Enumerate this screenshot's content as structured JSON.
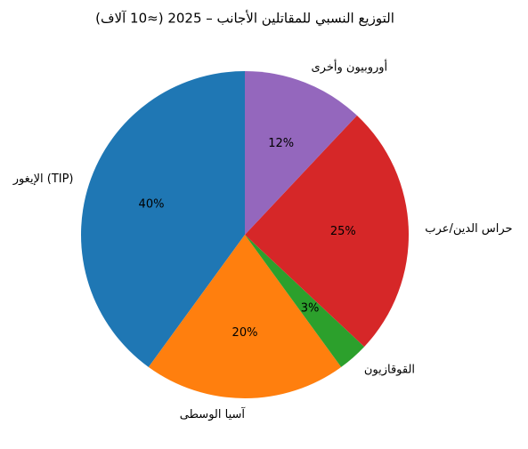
{
  "chart_data": {
    "type": "pie",
    "title": "التوزيع النسبي للمقاتلين الأجانب – 2025 (≈10 آلاف)",
    "categories": [
      "الإيغور (TIP)",
      "آسيا الوسطى",
      "القوقازيون",
      "حراس الدين/عرب",
      "أوروبيون وأخرى"
    ],
    "values": [
      40,
      20,
      3,
      25,
      12
    ],
    "value_labels": [
      "40%",
      "20%",
      "3%",
      "25%",
      "12%"
    ],
    "colors": [
      "#1f77b4",
      "#ff7f0e",
      "#2ca02c",
      "#d62728",
      "#9467bd"
    ]
  }
}
